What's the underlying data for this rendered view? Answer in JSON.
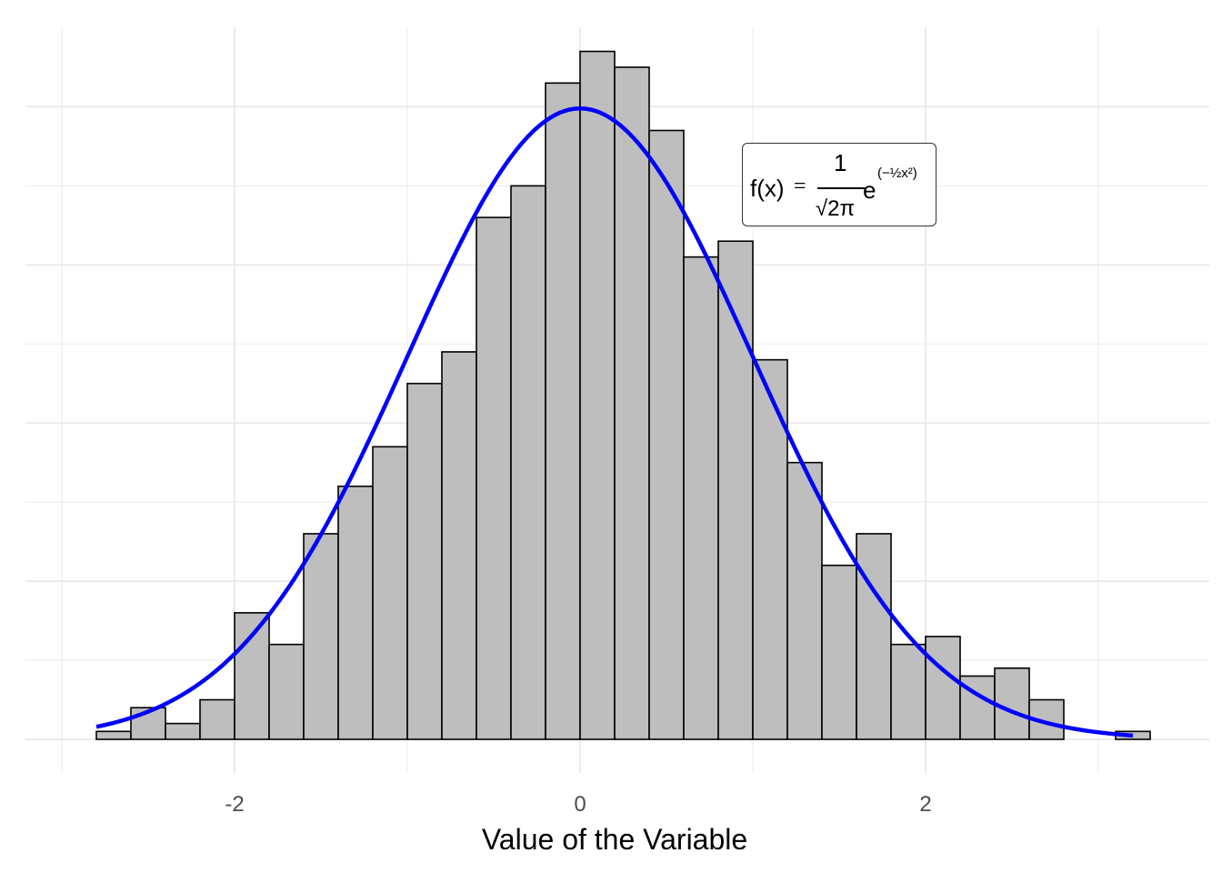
{
  "chart_data": {
    "type": "bar",
    "xlabel": "Value of the Variable",
    "ylabel": "",
    "xlim": [
      -3.0,
      3.3
    ],
    "ylim": [
      0,
      0.4
    ],
    "x_ticks": [
      -2,
      0,
      2
    ],
    "x_tick_labels": [
      "-2",
      "0",
      "2"
    ],
    "grid": true,
    "bin_width": 0.2,
    "bins": [
      {
        "x0": -2.8,
        "x1": -2.6,
        "density": 0.005
      },
      {
        "x0": -2.6,
        "x1": -2.4,
        "density": 0.02
      },
      {
        "x0": -2.4,
        "x1": -2.2,
        "density": 0.01
      },
      {
        "x0": -2.2,
        "x1": -2.0,
        "density": 0.025
      },
      {
        "x0": -2.0,
        "x1": -1.8,
        "density": 0.08
      },
      {
        "x0": -1.8,
        "x1": -1.6,
        "density": 0.06
      },
      {
        "x0": -1.6,
        "x1": -1.4,
        "density": 0.13
      },
      {
        "x0": -1.4,
        "x1": -1.2,
        "density": 0.16
      },
      {
        "x0": -1.2,
        "x1": -1.0,
        "density": 0.185
      },
      {
        "x0": -1.0,
        "x1": -0.8,
        "density": 0.225
      },
      {
        "x0": -0.8,
        "x1": -0.6,
        "density": 0.245
      },
      {
        "x0": -0.6,
        "x1": -0.4,
        "density": 0.33
      },
      {
        "x0": -0.4,
        "x1": -0.2,
        "density": 0.35
      },
      {
        "x0": -0.2,
        "x1": 0.0,
        "density": 0.415
      },
      {
        "x0": 0.0,
        "x1": 0.2,
        "density": 0.435
      },
      {
        "x0": 0.2,
        "x1": 0.4,
        "density": 0.425
      },
      {
        "x0": 0.4,
        "x1": 0.6,
        "density": 0.385
      },
      {
        "x0": 0.6,
        "x1": 0.8,
        "density": 0.305
      },
      {
        "x0": 0.8,
        "x1": 1.0,
        "density": 0.315
      },
      {
        "x0": 1.0,
        "x1": 1.2,
        "density": 0.24
      },
      {
        "x0": 1.2,
        "x1": 1.4,
        "density": 0.175
      },
      {
        "x0": 1.4,
        "x1": 1.6,
        "density": 0.11
      },
      {
        "x0": 1.6,
        "x1": 1.8,
        "density": 0.13
      },
      {
        "x0": 1.8,
        "x1": 2.0,
        "density": 0.06
      },
      {
        "x0": 2.0,
        "x1": 2.2,
        "density": 0.065
      },
      {
        "x0": 2.2,
        "x1": 2.4,
        "density": 0.04
      },
      {
        "x0": 2.4,
        "x1": 2.6,
        "density": 0.045
      },
      {
        "x0": 2.6,
        "x1": 2.8,
        "density": 0.025
      },
      {
        "x0": 3.1,
        "x1": 3.3,
        "density": 0.005
      }
    ],
    "curve": {
      "function": "standard normal density",
      "x_range": [
        -2.8,
        3.2
      ],
      "color": "#0000ff"
    },
    "bar_fill": "#bebebe",
    "bar_stroke": "#000000",
    "annotation": {
      "f": "f(x)",
      "eq": "=",
      "numerator": "1",
      "denominator": "√2π",
      "e": "e",
      "exponent": "(−½x²)"
    }
  }
}
